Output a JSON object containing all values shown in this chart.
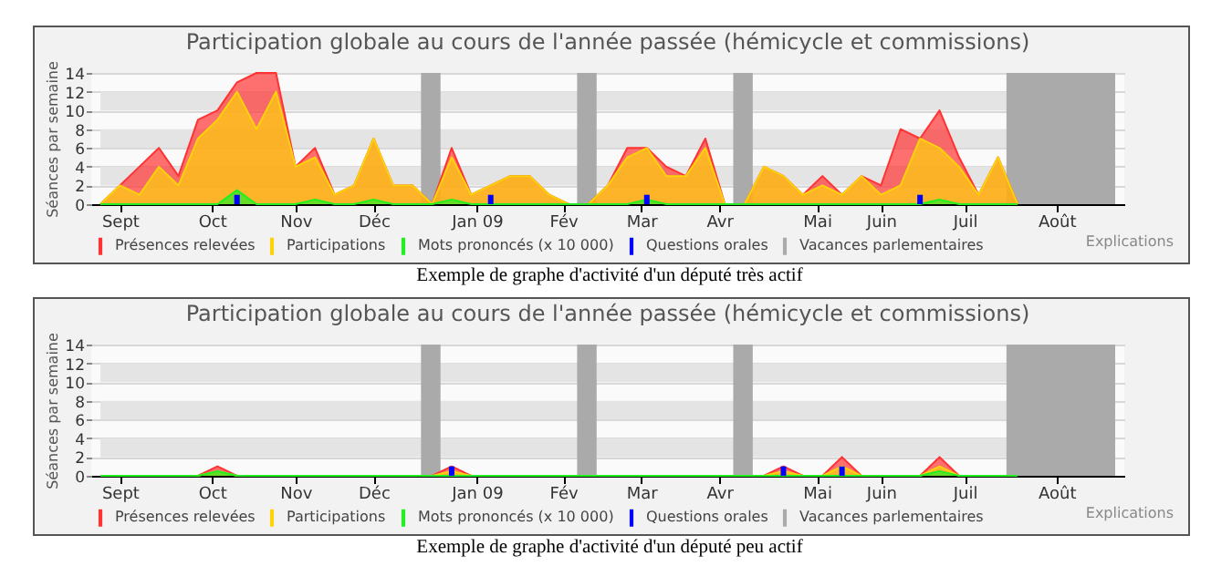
{
  "chart_data": [
    {
      "type": "area",
      "title": "Participation globale au cours de l'année passée (hémicycle et commissions)",
      "ylabel": "Séances par semaine",
      "x": [
        "2008-09-01",
        "2008-09-08",
        "2008-09-15",
        "2008-09-22",
        "2008-09-29",
        "2008-10-06",
        "2008-10-13",
        "2008-10-20",
        "2008-10-27",
        "2008-11-03",
        "2008-11-10",
        "2008-11-17",
        "2008-11-24",
        "2008-12-01",
        "2008-12-08",
        "2008-12-15",
        "2008-12-22",
        "2008-12-29",
        "2009-01-05",
        "2009-01-12",
        "2009-01-19",
        "2009-01-26",
        "2009-02-02",
        "2009-02-09",
        "2009-02-16",
        "2009-02-23",
        "2009-03-02",
        "2009-03-09",
        "2009-03-16",
        "2009-03-23",
        "2009-03-30",
        "2009-04-06",
        "2009-04-13",
        "2009-04-20",
        "2009-04-27",
        "2009-05-04",
        "2009-05-11",
        "2009-05-18",
        "2009-05-25",
        "2009-06-01",
        "2009-06-08",
        "2009-06-15",
        "2009-06-22",
        "2009-06-29",
        "2009-07-06",
        "2009-07-13",
        "2009-07-20",
        "2009-07-27"
      ],
      "series": [
        {
          "name": "Présences relevées",
          "color": "#ff3333",
          "values": [
            0,
            2,
            4,
            6,
            3,
            9,
            10,
            13,
            14,
            14,
            4,
            6,
            1,
            2,
            7,
            2,
            2,
            0,
            6,
            1,
            2,
            3,
            3,
            1,
            0,
            0,
            2,
            6,
            6,
            4,
            3,
            7,
            0,
            0,
            4,
            3,
            1,
            3,
            1,
            3,
            2,
            8,
            7,
            10,
            5,
            1,
            5,
            0
          ]
        },
        {
          "name": "Participations",
          "color": "#fcd20a",
          "values": [
            0,
            2,
            1,
            4,
            2,
            7,
            9,
            12,
            8,
            12,
            4,
            5,
            1,
            2,
            7,
            2,
            2,
            0,
            5,
            1,
            2,
            3,
            3,
            1,
            0,
            0,
            2,
            5,
            6,
            3,
            3,
            6,
            0,
            0,
            4,
            3,
            1,
            2,
            1,
            3,
            1,
            2,
            7,
            6,
            4,
            1,
            5,
            0
          ]
        },
        {
          "name": "Mots prononcés (x 10 000)",
          "color": "#22ee22",
          "values": [
            0,
            0,
            0,
            0,
            0,
            0,
            0,
            1.5,
            0,
            0,
            0,
            0.5,
            0,
            0,
            0.5,
            0,
            0,
            0,
            0.5,
            0,
            0,
            0,
            0,
            0,
            0,
            0,
            0,
            0,
            0.5,
            0,
            0,
            0,
            0,
            0,
            0,
            0,
            0,
            0,
            0,
            0,
            0,
            0,
            0,
            0.5,
            0,
            0,
            0,
            0
          ]
        },
        {
          "name": "Questions orales",
          "color": "#0000ff",
          "type": "bar",
          "x": [
            "2008-10-20",
            "2009-01-19",
            "2009-03-16",
            "2009-06-22"
          ],
          "values": [
            1,
            1,
            1,
            1
          ]
        }
      ],
      "bands": [
        {
          "axis": "x",
          "from": "2008-12-25",
          "to": "2009-01-01",
          "label": "Vacances parlementaires",
          "color": "#aaaaaa"
        },
        {
          "axis": "x",
          "from": "2009-02-19",
          "to": "2009-02-26",
          "color": "#aaaaaa"
        },
        {
          "axis": "x",
          "from": "2009-04-16",
          "to": "2009-04-23",
          "color": "#aaaaaa"
        },
        {
          "axis": "x",
          "from": "2009-07-23",
          "to": "2009-08-31",
          "color": "#aaaaaa"
        }
      ],
      "xlim": [
        "2008-09-01",
        "2009-08-31"
      ],
      "xticks": [
        {
          "value": "2008-09-08",
          "label": "Sept"
        },
        {
          "value": "2008-10-11",
          "label": "Oct"
        },
        {
          "value": "2008-11-10",
          "label": "Nov"
        },
        {
          "value": "2008-12-08",
          "label": "Déc"
        },
        {
          "value": "2009-01-14",
          "label": "Jan 09"
        },
        {
          "value": "2009-02-14",
          "label": "Fév"
        },
        {
          "value": "2009-03-14",
          "label": "Mar"
        },
        {
          "value": "2009-04-11",
          "label": "Avr"
        },
        {
          "value": "2009-05-16",
          "label": "Mai"
        },
        {
          "value": "2009-06-08",
          "label": "Juin"
        },
        {
          "value": "2009-07-08",
          "label": "Juil"
        },
        {
          "value": "2009-08-10",
          "label": "Août"
        }
      ],
      "ylim": [
        0,
        14
      ],
      "yticks": [
        0,
        2,
        4,
        6,
        8,
        10,
        12,
        14
      ],
      "grid": "y",
      "legend": "bottom",
      "annotations": [
        "Explications",
        "Exemple de graphe d'activité d'un député très actif"
      ]
    },
    {
      "type": "area",
      "title": "Participation globale au cours de l'année passée (hémicycle et commissions)",
      "ylabel": "Séances par semaine",
      "x": [
        "2008-09-01",
        "2008-09-08",
        "2008-09-15",
        "2008-09-22",
        "2008-09-29",
        "2008-10-06",
        "2008-10-13",
        "2008-10-20",
        "2008-10-27",
        "2008-11-03",
        "2008-11-10",
        "2008-11-17",
        "2008-11-24",
        "2008-12-01",
        "2008-12-08",
        "2008-12-15",
        "2008-12-22",
        "2008-12-29",
        "2009-01-05",
        "2009-01-12",
        "2009-01-19",
        "2009-01-26",
        "2009-02-02",
        "2009-02-09",
        "2009-02-16",
        "2009-02-23",
        "2009-03-02",
        "2009-03-09",
        "2009-03-16",
        "2009-03-23",
        "2009-03-30",
        "2009-04-06",
        "2009-04-13",
        "2009-04-20",
        "2009-04-27",
        "2009-05-04",
        "2009-05-11",
        "2009-05-18",
        "2009-05-25",
        "2009-06-01",
        "2009-06-08",
        "2009-06-15",
        "2009-06-22",
        "2009-06-29",
        "2009-07-06",
        "2009-07-13",
        "2009-07-20",
        "2009-07-27"
      ],
      "series": [
        {
          "name": "Présences relevées",
          "color": "#ff3333",
          "values": [
            0,
            0,
            0,
            0,
            0,
            0,
            1,
            0,
            0,
            0,
            0,
            0,
            0,
            0,
            0,
            0,
            0,
            0,
            1,
            0,
            0,
            0,
            0,
            0,
            0,
            0,
            0,
            0,
            0,
            0,
            0,
            0,
            0,
            0,
            0,
            1,
            0,
            0,
            2,
            0,
            0,
            0,
            0,
            2,
            0,
            0,
            0,
            0
          ]
        },
        {
          "name": "Participations",
          "color": "#fcd20a",
          "values": [
            0,
            0,
            0,
            0,
            0,
            0,
            0.5,
            0,
            0,
            0,
            0,
            0,
            0,
            0,
            0,
            0,
            0,
            0,
            0.5,
            0,
            0,
            0,
            0,
            0,
            0,
            0,
            0,
            0,
            0,
            0,
            0,
            0,
            0,
            0,
            0,
            0.5,
            0,
            0,
            1,
            0,
            0,
            0,
            0,
            1,
            0,
            0,
            0,
            0
          ]
        },
        {
          "name": "Mots prononcés (x 10 000)",
          "color": "#22ee22",
          "values": [
            0,
            0,
            0,
            0,
            0,
            0,
            0.5,
            0,
            0,
            0,
            0,
            0,
            0,
            0,
            0,
            0,
            0,
            0,
            0,
            0,
            0,
            0,
            0,
            0,
            0,
            0,
            0,
            0,
            0,
            0,
            0,
            0,
            0,
            0,
            0,
            0,
            0,
            0,
            0,
            0,
            0,
            0,
            0,
            0.5,
            0,
            0,
            0,
            0
          ]
        },
        {
          "name": "Questions orales",
          "color": "#0000ff",
          "type": "bar",
          "x": [
            "2009-01-05",
            "2009-05-04",
            "2009-05-25"
          ],
          "values": [
            1,
            1,
            1
          ]
        }
      ],
      "bands": [
        {
          "axis": "x",
          "from": "2008-12-25",
          "to": "2009-01-01",
          "label": "Vacances parlementaires",
          "color": "#aaaaaa"
        },
        {
          "axis": "x",
          "from": "2009-02-19",
          "to": "2009-02-26",
          "color": "#aaaaaa"
        },
        {
          "axis": "x",
          "from": "2009-04-16",
          "to": "2009-04-23",
          "color": "#aaaaaa"
        },
        {
          "axis": "x",
          "from": "2009-07-23",
          "to": "2009-08-31",
          "color": "#aaaaaa"
        }
      ],
      "xlim": [
        "2008-09-01",
        "2009-08-31"
      ],
      "xticks": [
        {
          "value": "2008-09-08",
          "label": "Sept"
        },
        {
          "value": "2008-10-11",
          "label": "Oct"
        },
        {
          "value": "2008-11-10",
          "label": "Nov"
        },
        {
          "value": "2008-12-08",
          "label": "Déc"
        },
        {
          "value": "2009-01-14",
          "label": "Jan 09"
        },
        {
          "value": "2009-02-14",
          "label": "Fév"
        },
        {
          "value": "2009-03-14",
          "label": "Mar"
        },
        {
          "value": "2009-04-11",
          "label": "Avr"
        },
        {
          "value": "2009-05-16",
          "label": "Mai"
        },
        {
          "value": "2009-06-08",
          "label": "Juin"
        },
        {
          "value": "2009-07-08",
          "label": "Juil"
        },
        {
          "value": "2009-08-10",
          "label": "Août"
        }
      ],
      "ylim": [
        0,
        14
      ],
      "yticks": [
        0,
        2,
        4,
        6,
        8,
        10,
        12,
        14
      ],
      "grid": "y",
      "legend": "bottom",
      "annotations": [
        "Explications",
        "Exemple de graphe d'activité d'un député peu actif"
      ]
    }
  ]
}
